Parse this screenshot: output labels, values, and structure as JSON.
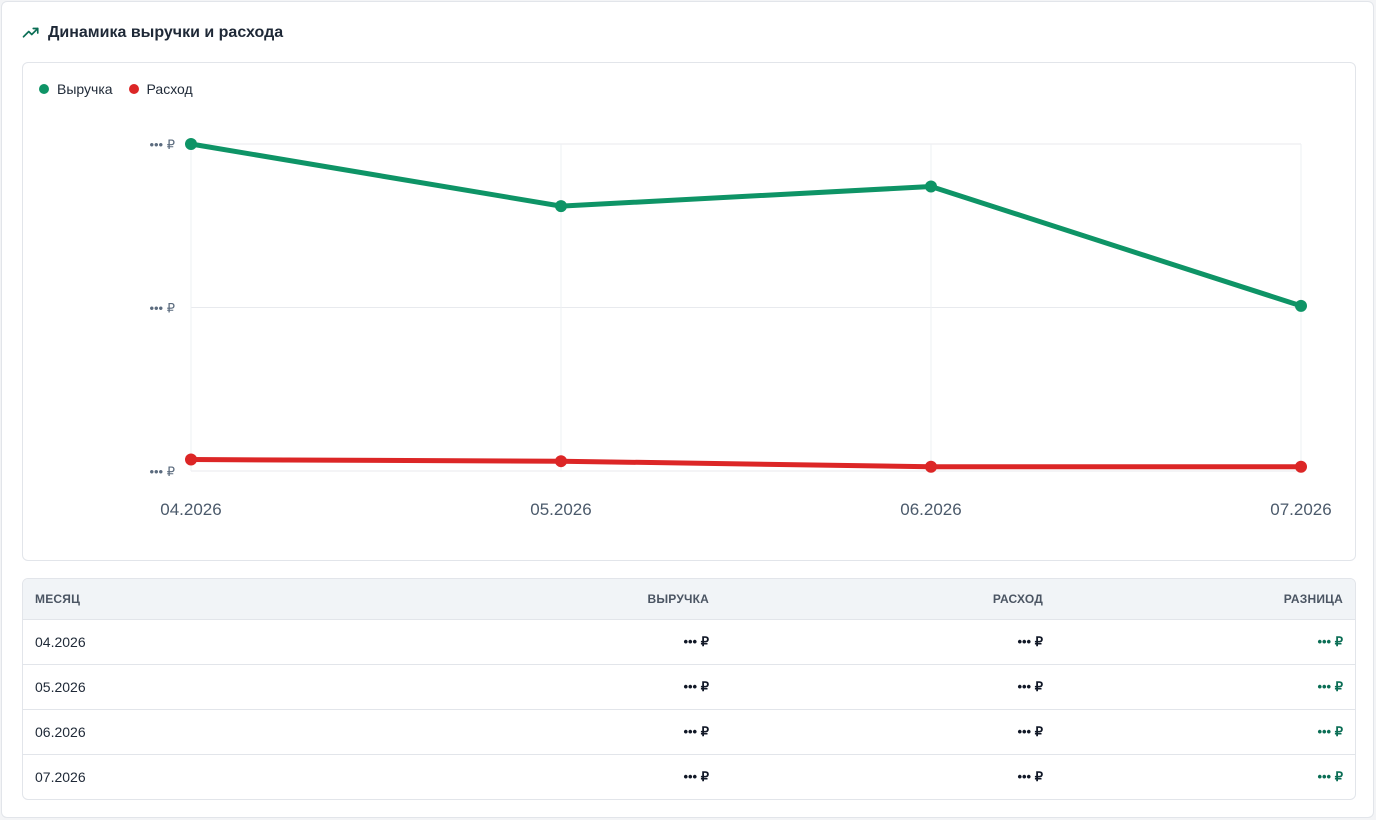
{
  "card": {
    "title": "Динамика выручки и расхода",
    "icon": "trending-up-icon"
  },
  "legend": [
    {
      "label": "Выручка",
      "color": "#0e9466"
    },
    {
      "label": "Расход",
      "color": "#dc2626"
    }
  ],
  "chart_data": {
    "type": "line",
    "categories": [
      "04.2026",
      "05.2026",
      "06.2026",
      "07.2026"
    ],
    "y_tick_labels": [
      "••• ₽",
      "••• ₽",
      "••• ₽"
    ],
    "y_ticks": [
      0,
      50,
      100
    ],
    "ylim": [
      0,
      100
    ],
    "grid": true,
    "legend_position": "top-left",
    "series": [
      {
        "name": "Выручка",
        "color": "#0e9466",
        "values": [
          100,
          81,
          87,
          50.5
        ]
      },
      {
        "name": "Расход",
        "color": "#dc2626",
        "values": [
          3.5,
          3,
          1.3,
          1.3
        ]
      }
    ]
  },
  "table": {
    "headers": {
      "month": "МЕСЯЦ",
      "revenue": "ВЫРУЧКА",
      "expense": "РАСХОД",
      "diff": "РАЗНИЦА"
    },
    "rows": [
      {
        "month": "04.2026",
        "revenue": "••• ₽",
        "expense": "••• ₽",
        "diff": "••• ₽"
      },
      {
        "month": "05.2026",
        "revenue": "••• ₽",
        "expense": "••• ₽",
        "diff": "••• ₽"
      },
      {
        "month": "06.2026",
        "revenue": "••• ₽",
        "expense": "••• ₽",
        "diff": "••• ₽"
      },
      {
        "month": "07.2026",
        "revenue": "••• ₽",
        "expense": "••• ₽",
        "diff": "••• ₽"
      }
    ]
  }
}
